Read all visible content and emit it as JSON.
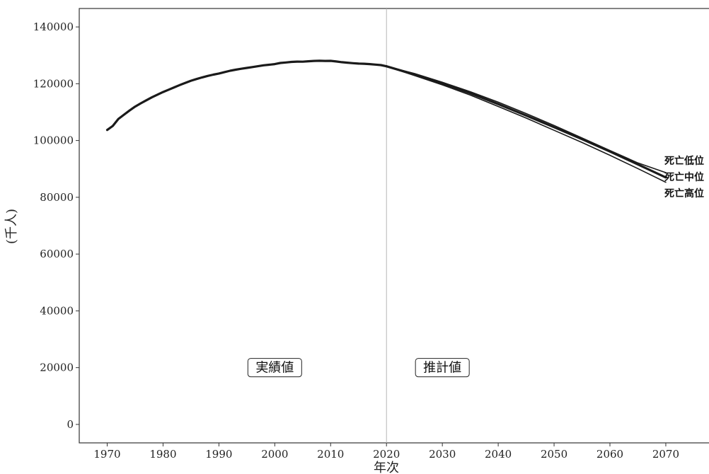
{
  "chart_data": {
    "type": "line",
    "title": "",
    "xlabel": "年次",
    "ylabel": "(千人)",
    "xlim": [
      1965,
      2079
    ],
    "ylim": [
      -6500,
      146500
    ],
    "x_ticks": [
      1970,
      1980,
      1990,
      2000,
      2010,
      2020,
      2030,
      2040,
      2050,
      2060,
      2070
    ],
    "y_ticks": [
      0,
      20000,
      40000,
      60000,
      80000,
      100000,
      120000,
      140000
    ],
    "grid": false,
    "legend": "none",
    "divider_x": 2020,
    "annotations": [
      {
        "text": "実績値",
        "x": 2000,
        "y": 20000
      },
      {
        "text": "推計値",
        "x": 2030,
        "y": 20000
      }
    ],
    "series": [
      {
        "name": "実績",
        "x": [
          1970,
          1971,
          1972,
          1973,
          1974,
          1975,
          1976,
          1977,
          1978,
          1979,
          1980,
          1981,
          1982,
          1983,
          1984,
          1985,
          1986,
          1987,
          1988,
          1989,
          1990,
          1991,
          1992,
          1993,
          1994,
          1995,
          1996,
          1997,
          1998,
          1999,
          2000,
          2001,
          2002,
          2003,
          2004,
          2005,
          2006,
          2007,
          2008,
          2009,
          2010,
          2011,
          2012,
          2013,
          2014,
          2015,
          2016,
          2017,
          2018,
          2019,
          2020
        ],
        "values": [
          103720,
          105145,
          107595,
          109104,
          110573,
          111940,
          113094,
          114165,
          115190,
          116155,
          117060,
          117902,
          118728,
          119536,
          120305,
          121049,
          121660,
          122239,
          122745,
          123205,
          123611,
          124101,
          124567,
          124938,
          125265,
          125570,
          125864,
          126166,
          126486,
          126686,
          126926,
          127316,
          127486,
          127694,
          127787,
          127768,
          127901,
          128033,
          128084,
          128032,
          128057,
          127834,
          127593,
          127414,
          127237,
          127095,
          127042,
          126919,
          126749,
          126555,
          126146
        ],
        "color": "#1a1a1a"
      },
      {
        "name": "死亡低位",
        "x": [
          2020,
          2025,
          2030,
          2035,
          2040,
          2045,
          2050,
          2055,
          2060,
          2065,
          2070
        ],
        "values": [
          126146,
          123600,
          120500,
          117200,
          113500,
          109500,
          105300,
          100900,
          96500,
          92100,
          88700
        ],
        "color": "#1a1a1a"
      },
      {
        "name": "死亡中位",
        "x": [
          2020,
          2025,
          2030,
          2035,
          2040,
          2045,
          2050,
          2055,
          2060,
          2065,
          2070
        ],
        "values": [
          126146,
          123262,
          120116,
          116639,
          112837,
          108801,
          104686,
          100508,
          96148,
          91587,
          87000
        ],
        "color": "#1a1a1a"
      },
      {
        "name": "死亡高位",
        "x": [
          2020,
          2025,
          2030,
          2035,
          2040,
          2045,
          2050,
          2055,
          2060,
          2065,
          2070
        ],
        "values": [
          126146,
          122900,
          119600,
          116000,
          112000,
          107900,
          103600,
          99300,
          94800,
          90100,
          85300
        ],
        "color": "#1a1a1a"
      }
    ]
  }
}
